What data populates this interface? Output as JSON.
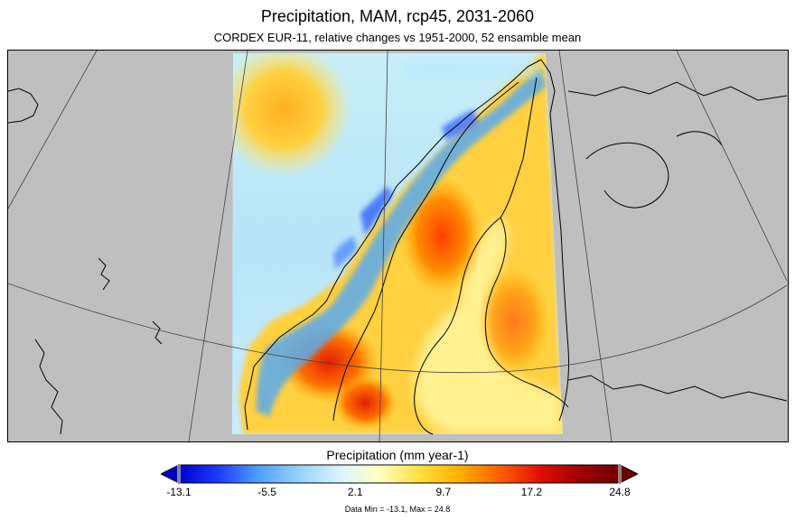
{
  "title": "Precipitation, MAM, rcp45, 2031-2060",
  "subtitle": "CORDEX EUR-11, relative changes vs 1951-2000, 52 ensamble mean",
  "colorbar": {
    "title": "Precipitation (mm year-1)",
    "ticks": [
      "-13.1",
      "-5.5",
      "2.1",
      "9.7",
      "17.2",
      "24.8"
    ],
    "min": -13.1,
    "max": 24.8,
    "colors": [
      "#0000c8",
      "#1e3cff",
      "#50a0ff",
      "#96d2fa",
      "#d8f4ff",
      "#ffffc0",
      "#ffe040",
      "#ffb000",
      "#ff6000",
      "#e01000",
      "#a00000",
      "#6e0000"
    ]
  },
  "data_range": "Data Min = -13.1, Max = 24.8",
  "map": {
    "land_color": "#bfbfbf",
    "coastline_color": "#000000"
  }
}
